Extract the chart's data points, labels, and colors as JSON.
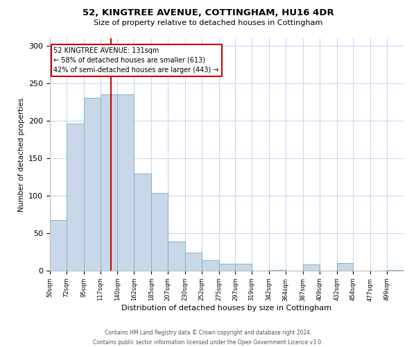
{
  "title": "52, KINGTREE AVENUE, COTTINGHAM, HU16 4DR",
  "subtitle": "Size of property relative to detached houses in Cottingham",
  "xlabel": "Distribution of detached houses by size in Cottingham",
  "ylabel": "Number of detached properties",
  "bar_labels": [
    "50sqm",
    "72sqm",
    "95sqm",
    "117sqm",
    "140sqm",
    "162sqm",
    "185sqm",
    "207sqm",
    "230sqm",
    "252sqm",
    "275sqm",
    "297sqm",
    "319sqm",
    "342sqm",
    "364sqm",
    "387sqm",
    "409sqm",
    "432sqm",
    "454sqm",
    "477sqm",
    "499sqm"
  ],
  "bar_values": [
    68,
    196,
    230,
    235,
    235,
    130,
    104,
    39,
    24,
    14,
    9,
    9,
    0,
    1,
    0,
    8,
    0,
    10,
    0,
    0,
    1
  ],
  "bar_color": "#c8d8e8",
  "bar_edge_color": "#7aaac8",
  "ylim": [
    0,
    310
  ],
  "yticks": [
    0,
    50,
    100,
    150,
    200,
    250,
    300
  ],
  "property_line_x": 131,
  "property_line_label": "52 KINGTREE AVENUE: 131sqm",
  "annotation_line1": "← 58% of detached houses are smaller (613)",
  "annotation_line2": "42% of semi-detached houses are larger (443) →",
  "annotation_box_color": "#ffffff",
  "annotation_box_edge": "#cc0000",
  "vline_color": "#cc0000",
  "footer1": "Contains HM Land Registry data © Crown copyright and database right 2024.",
  "footer2": "Contains public sector information licensed under the Open Government Licence v3.0.",
  "bin_edges": [
    50,
    72,
    95,
    117,
    140,
    162,
    185,
    207,
    230,
    252,
    275,
    297,
    319,
    342,
    364,
    387,
    409,
    432,
    454,
    477,
    499,
    521
  ],
  "background_color": "#ffffff",
  "grid_color": "#c8d8f0"
}
